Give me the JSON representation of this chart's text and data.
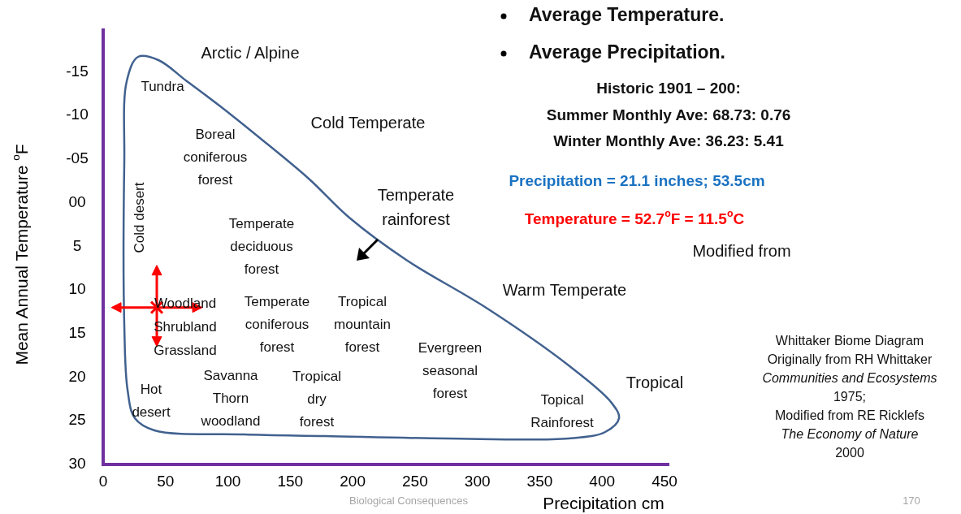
{
  "chart_data": {
    "type": "scatter",
    "xlabel": "Precipitation cm",
    "ylabel": "Mean Annual Temperature $^{o}$F",
    "xlim": [
      0,
      450
    ],
    "xticks": [
      0,
      50,
      100,
      150,
      200,
      250,
      300,
      350,
      400,
      450
    ],
    "ylim": [
      30,
      -20
    ],
    "yticks": [
      {
        "value": -15,
        "label": "-15"
      },
      {
        "value": -10,
        "label": "-10"
      },
      {
        "value": -5,
        "label": "-05"
      },
      {
        "value": 0,
        "label": "00"
      },
      5,
      10,
      15,
      20,
      25,
      30
    ],
    "series": [
      {
        "marker": "cross",
        "color": "#ff0000",
        "x": [
          43
        ],
        "values": [
          12
        ]
      }
    ],
    "annotations": [
      "Arctic / Alpine",
      "Tundra",
      "Boreal\nconiferous\nforest",
      "Cold Temperate",
      "Temperate\nrainforest",
      "Cold desert",
      "Temperate\ndeciduous\nforest",
      "Warm Temperate",
      "Woodland\nShrubland\nGrassland",
      "Temperate\nconiferous\nforest",
      "Tropical\nmountain\nforest",
      "Evergreen\nseasonal\nforest",
      "Tropical",
      "Hot\ndesert",
      "Savanna\nThorn\nwoodland",
      "Tropical\ndry\nforest",
      "Topical\nRainforest",
      "Average Temperature.",
      "Average Precipitation.",
      "Historic 1901 – 200:",
      "Summer Monthly Ave: 68.73: 0.76",
      "Winter Monthly Ave: 36.23: 5.41",
      "Precipitation = 21.1 inches; 53.5cm",
      "Temperature = 52.7$^{o}$F = 11.5$^{o}$C",
      "Modified from",
      "Whittaker Biome Diagram",
      "Originally from RH Whittaker",
      "Communities and Ecosystems",
      "1975;",
      "Modified from RE Ricklefs",
      "The Economy of Nature",
      "2000",
      "Biological Consequences",
      "170"
    ]
  }
}
